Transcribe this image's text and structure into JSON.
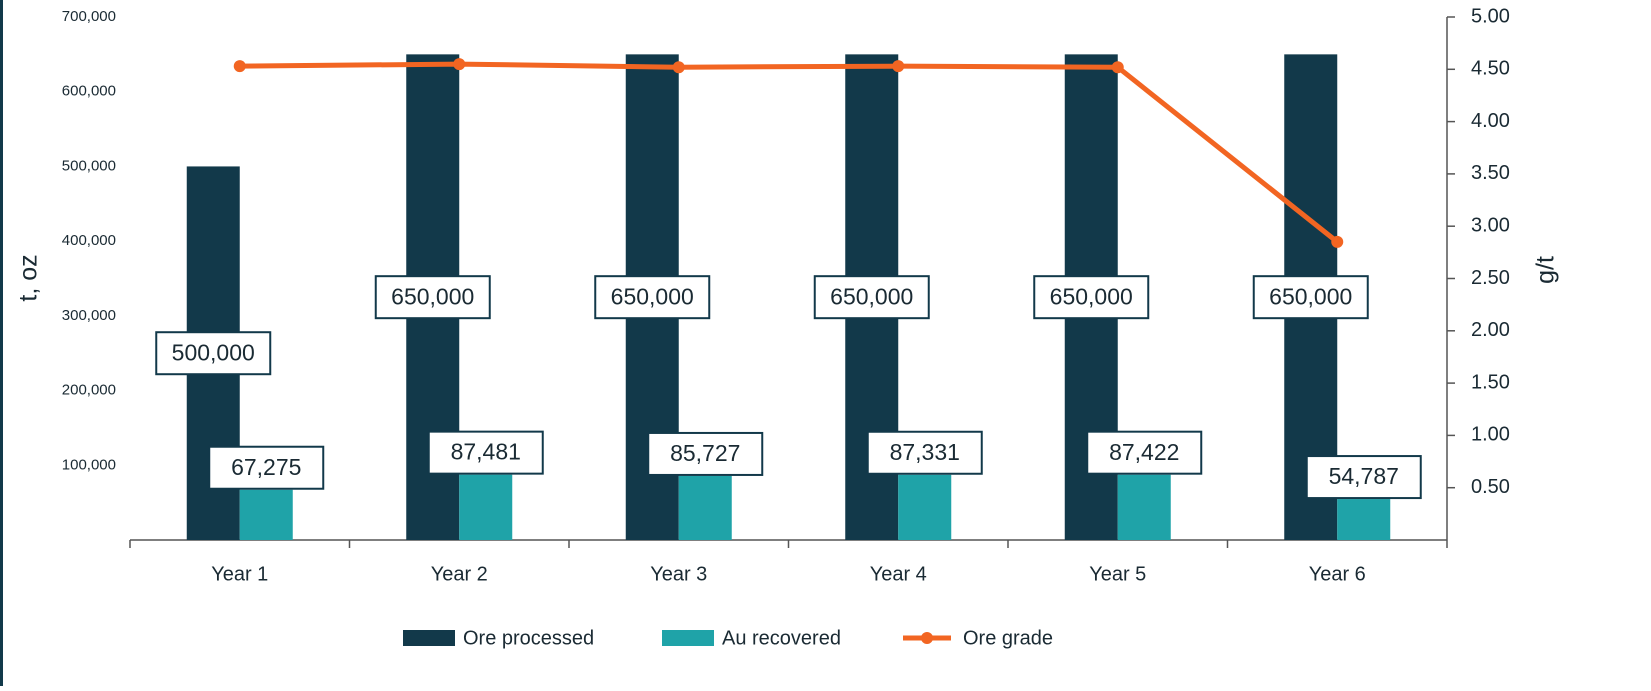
{
  "chart_data": {
    "type": "bar",
    "categories": [
      "Year 1",
      "Year 2",
      "Year 3",
      "Year 4",
      "Year 5",
      "Year 6"
    ],
    "series": [
      {
        "name": "Ore processed",
        "type": "bar",
        "color": "#12394a",
        "values": [
          500000,
          650000,
          650000,
          650000,
          650000,
          650000
        ],
        "value_labels": [
          "500,000",
          "650,000",
          "650,000",
          "650,000",
          "650,000",
          "650,000"
        ]
      },
      {
        "name": "Au recovered",
        "type": "bar",
        "color": "#1fa3a8",
        "values": [
          67275,
          87481,
          85727,
          87331,
          87422,
          54787
        ],
        "value_labels": [
          "67,275",
          "87,481",
          "85,727",
          "87,331",
          "87,422",
          "54,787"
        ]
      },
      {
        "name": "Ore grade",
        "type": "line",
        "axis": "y2",
        "color": "#f26522",
        "values": [
          4.53,
          4.55,
          4.52,
          4.53,
          4.52,
          2.85
        ]
      }
    ],
    "ylabel": "t, oz",
    "y2label": "g/t",
    "ylim": [
      0,
      700000
    ],
    "yticks": [
      {
        "value": 100000,
        "label": "100,000"
      },
      {
        "value": 200000,
        "label": "200,000"
      },
      {
        "value": 300000,
        "label": "300,000"
      },
      {
        "value": 400000,
        "label": "400,000"
      },
      {
        "value": 500000,
        "label": "500,000"
      },
      {
        "value": 600000,
        "label": "600,000"
      },
      {
        "value": 700000,
        "label": "700,000"
      }
    ],
    "y2lim": [
      0,
      5
    ],
    "y2ticks": [
      {
        "value": 0.5,
        "label": "0.50"
      },
      {
        "value": 1,
        "label": "1.00"
      },
      {
        "value": 1.5,
        "label": "1.50"
      },
      {
        "value": 2,
        "label": "2.00"
      },
      {
        "value": 2.5,
        "label": "2.50"
      },
      {
        "value": 3,
        "label": "3.00"
      },
      {
        "value": 3.5,
        "label": "3.50"
      },
      {
        "value": 4,
        "label": "4.00"
      },
      {
        "value": 4.5,
        "label": "4.50"
      },
      {
        "value": 5,
        "label": "5.00"
      }
    ],
    "legend": "bottom"
  }
}
